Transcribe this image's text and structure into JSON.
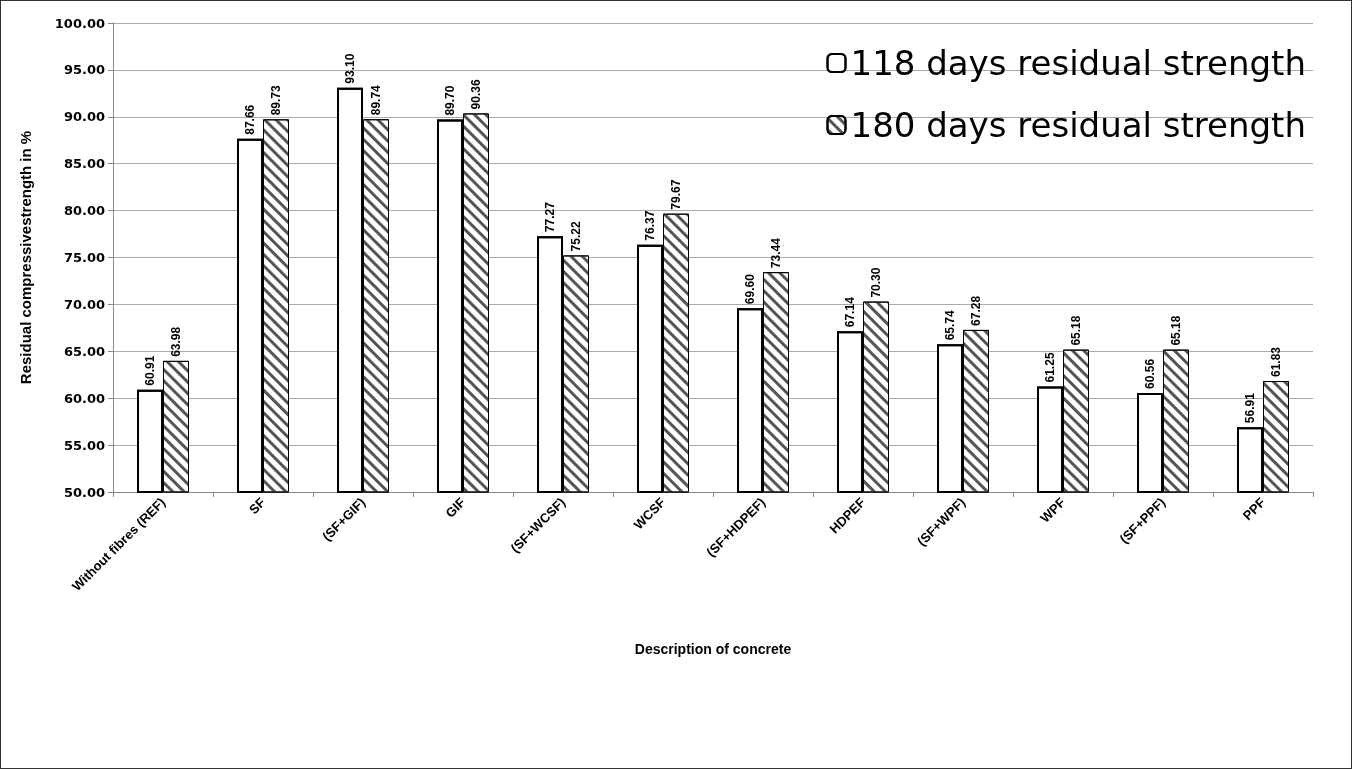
{
  "chart_data": {
    "type": "bar",
    "xlabel": "Description of concrete",
    "ylabel": "Residual compressivestrength in %",
    "categories": [
      "Without fibres (REF)",
      "SF",
      "(SF+GIF)",
      "GIF",
      "(SF+WCSF)",
      "WCSF",
      "(SF+HDPEF)",
      "HDPEF",
      "(SF+WPF)",
      "WPF",
      "(SF+PPF)",
      "PPF"
    ],
    "series": [
      {
        "name": "118 days residual strength",
        "color": "#ffffff",
        "values": [
          60.91,
          87.66,
          93.1,
          89.7,
          77.27,
          76.37,
          69.6,
          67.14,
          65.74,
          61.25,
          60.56,
          56.91
        ],
        "value_labels": [
          "60.91",
          "87.66",
          "93.10",
          "89.70",
          "77.27",
          "76.37",
          "69.60",
          "67.14",
          "65.74",
          "61.25",
          "60.56",
          "56.91"
        ]
      },
      {
        "name": "180 days residual strength",
        "color": "#ffffff",
        "values": [
          63.98,
          89.73,
          89.74,
          90.36,
          75.22,
          79.67,
          73.44,
          70.3,
          67.28,
          65.18,
          65.18,
          61.83
        ],
        "value_labels": [
          "63.98",
          "89.73",
          "89.74",
          "90.36",
          "75.22",
          "79.67",
          "73.44",
          "70.30",
          "67.28",
          "65.18",
          "65.18",
          "61.83"
        ]
      }
    ],
    "ylim": [
      50,
      100
    ],
    "yticks": [
      {
        "value": 50,
        "label": "50.00"
      },
      {
        "value": 55,
        "label": "55.00"
      },
      {
        "value": 60,
        "label": "60.00"
      },
      {
        "value": 65,
        "label": "65.00"
      },
      {
        "value": 70,
        "label": "70.00"
      },
      {
        "value": 75,
        "label": "75.00"
      },
      {
        "value": 80,
        "label": "80.00"
      },
      {
        "value": 85,
        "label": "85.00"
      },
      {
        "value": 90,
        "label": "90.00"
      },
      {
        "value": 95,
        "label": "95.00"
      },
      {
        "value": 100,
        "label": "100.00"
      }
    ],
    "grid": "y",
    "legend": "top right"
  }
}
